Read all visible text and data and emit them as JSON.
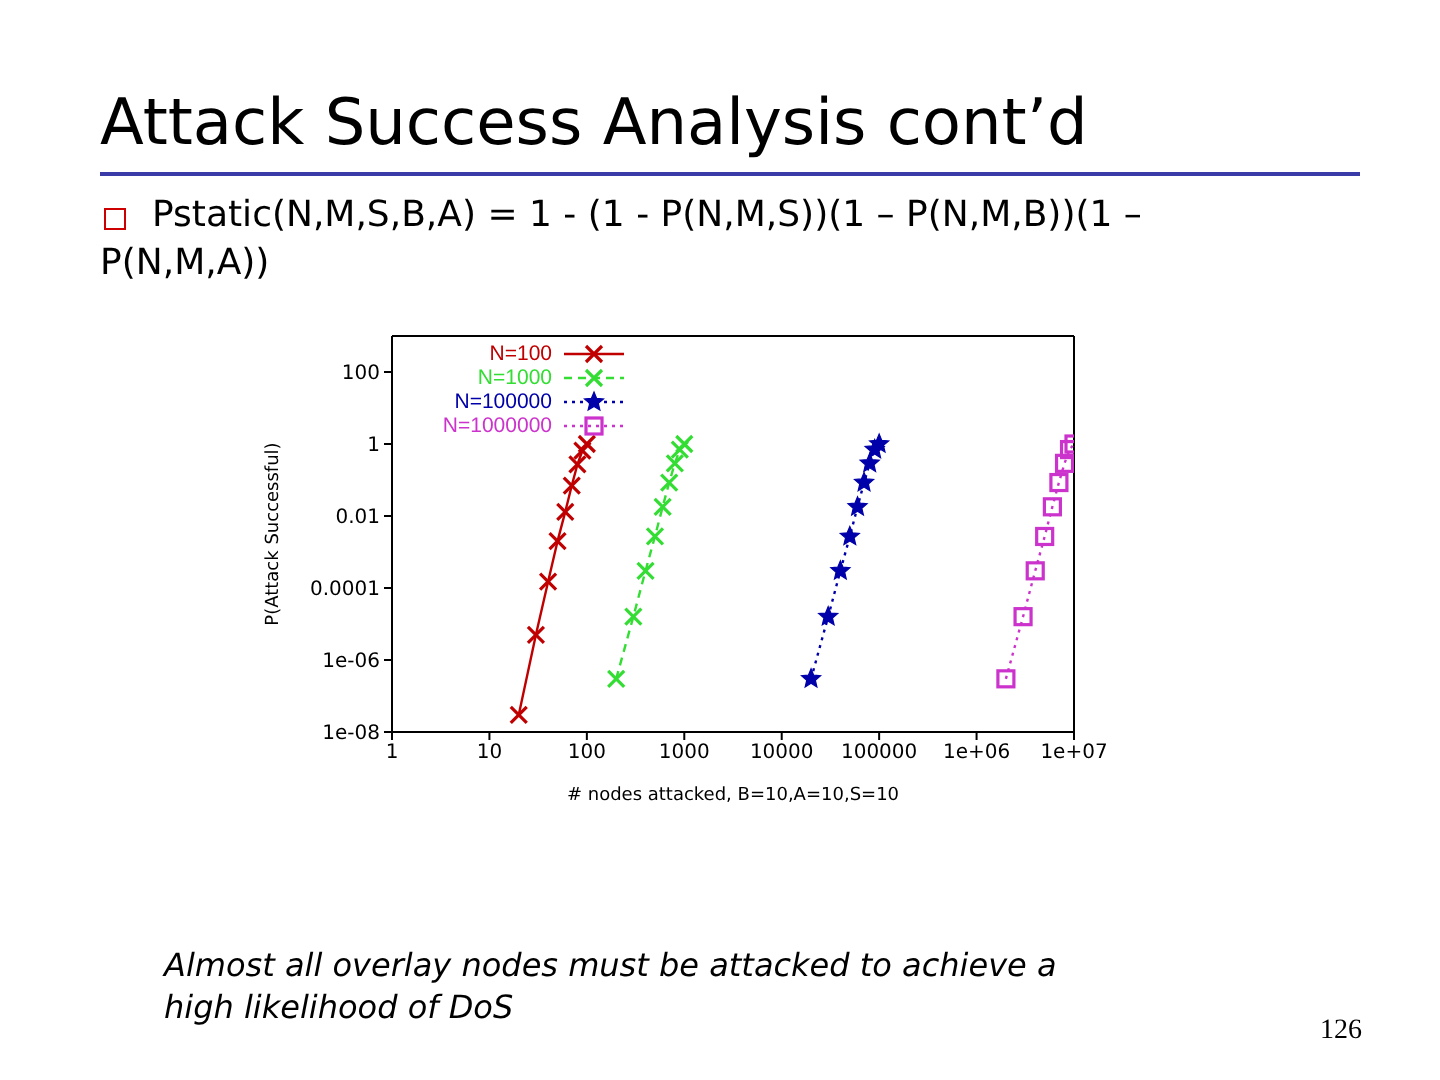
{
  "chart_data": {
    "type": "line",
    "title": "Attack Success Analysis cont’d",
    "subtitle": "Pstatic(N,M,S,B,A) = 1 - (1 - P(N,M,S))(1 – P(N,M,B))(1 – P(N,M,A))",
    "xlabel": "# nodes attacked, B=10,A=10,S=10",
    "ylabel": "P(Attack Successful)",
    "annotations": [
      "Almost all overlay nodes must be attacked to achieve a high likelihood of DoS",
      "126"
    ],
    "log": "xy",
    "xlim": [
      1,
      10000000
    ],
    "xticks": [
      1,
      10,
      100,
      1000,
      10000,
      100000,
      {
        "value": 1000000,
        "label": "1e+06"
      },
      {
        "value": 10000000,
        "label": "1e+07"
      }
    ],
    "ylim": [
      1e-08,
      1000
    ],
    "yticks": [
      {
        "value": 1e-08,
        "label": "1e-08"
      },
      {
        "value": 1e-06,
        "label": "1e-06"
      },
      0.0001,
      0.01,
      1,
      100
    ],
    "legend": "top left",
    "series": [
      {
        "name": "N=100",
        "color": "#c00000",
        "marker": "cross",
        "line_style": "solid",
        "x": [
          20,
          30,
          40,
          50,
          60,
          70,
          80,
          90,
          100
        ],
        "values": [
          3e-08,
          5e-06,
          0.00015,
          0.002,
          0.013,
          0.07,
          0.27,
          0.65,
          1
        ]
      },
      {
        "name": "N=1000",
        "color": "#33dd33",
        "marker": "cross",
        "line_style": "dashed",
        "x": [
          200,
          300,
          400,
          500,
          600,
          700,
          800,
          900,
          1000
        ],
        "values": [
          3e-07,
          1.6e-05,
          0.0003,
          0.0027,
          0.018,
          0.085,
          0.29,
          0.7,
          1
        ]
      },
      {
        "name": "N=100000",
        "color": "#0000aa",
        "marker": "star",
        "line_style": "dotted",
        "x": [
          20000,
          30000,
          40000,
          50000,
          60000,
          70000,
          80000,
          90000,
          100000
        ],
        "values": [
          3e-07,
          1.6e-05,
          0.0003,
          0.0027,
          0.018,
          0.085,
          0.29,
          0.7,
          1
        ]
      },
      {
        "name": "N=1000000",
        "color": "#cc33cc",
        "marker": "square",
        "line_style": "dotted",
        "x": [
          2000000,
          3000000,
          4000000,
          5000000,
          6000000,
          7000000,
          8000000,
          9000000,
          10000000
        ],
        "values": [
          3e-07,
          1.6e-05,
          0.0003,
          0.0027,
          0.018,
          0.085,
          0.29,
          0.7,
          1
        ]
      }
    ]
  }
}
